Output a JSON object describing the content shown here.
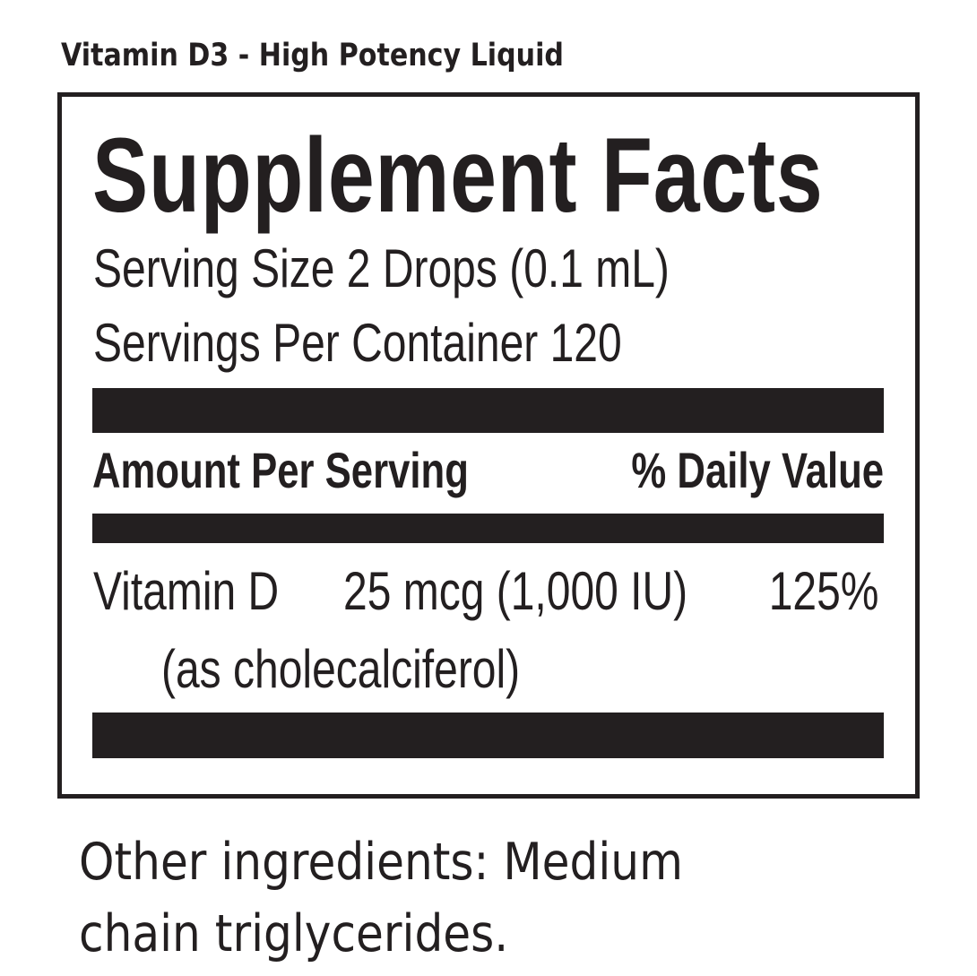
{
  "product_title": "Vitamin D3 - High Potency Liquid",
  "facts": {
    "heading": "Supplement Facts",
    "serving_size": "Serving Size 2 Drops (0.1 mL)",
    "servings_per_container": "Servings Per Container 120",
    "header_amount": "Amount Per Serving",
    "header_dv": "% Daily Value",
    "rows": [
      {
        "name": "Vitamin D",
        "amount": "25 mcg (1,000 IU)",
        "dv": "125%",
        "source": "(as cholecalciferol)"
      }
    ]
  },
  "other_ingredients": "Other ingredients: Medium chain triglycerides.",
  "colors": {
    "ink": "#231f20",
    "background": "#ffffff"
  }
}
